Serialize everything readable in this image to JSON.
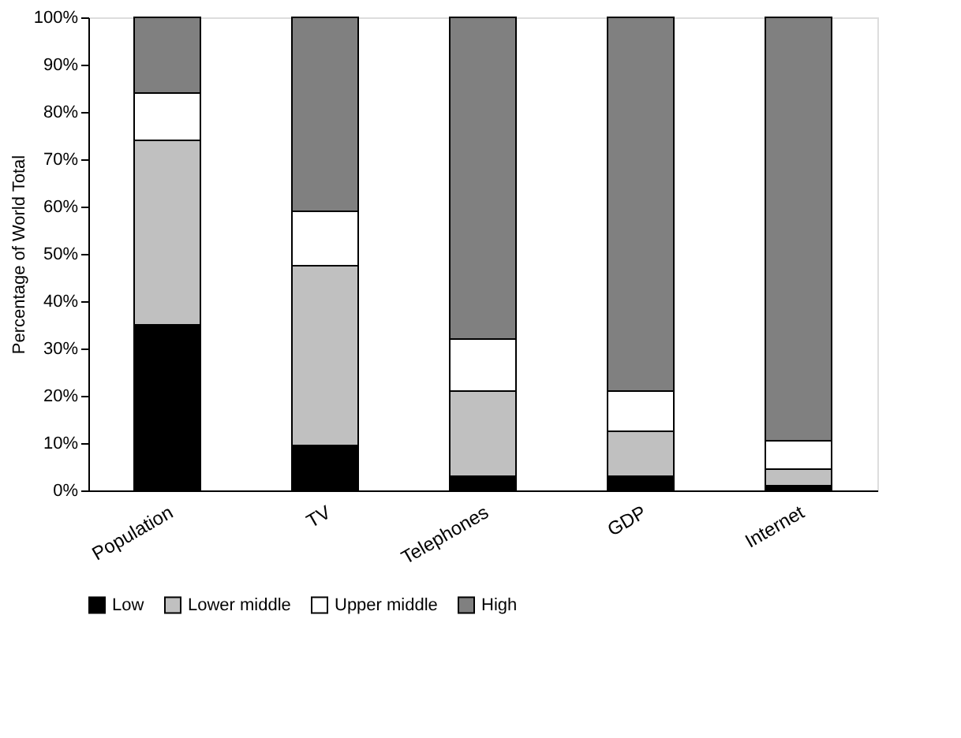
{
  "chart_data": {
    "type": "bar",
    "stacked": true,
    "ylabel": "Percentage of World Total",
    "categories": [
      "Population",
      "TV",
      "Telephones",
      "GDP",
      "Internet"
    ],
    "series": [
      {
        "name": "Low",
        "color": "#000000",
        "values": [
          35,
          9.5,
          3,
          3,
          1
        ]
      },
      {
        "name": "Lower middle",
        "color": "#c0c0c0",
        "values": [
          39,
          38,
          18,
          9.5,
          3.5
        ]
      },
      {
        "name": "Upper middle",
        "color": "#ffffff",
        "values": [
          10,
          11.5,
          11,
          8.5,
          6
        ]
      },
      {
        "name": "High",
        "color": "#808080",
        "values": [
          16,
          41,
          68,
          79,
          89.5
        ]
      }
    ],
    "ylim": [
      0,
      100
    ],
    "yticks": [
      {
        "value": 0,
        "label": "0%"
      },
      {
        "value": 10,
        "label": "10%"
      },
      {
        "value": 20,
        "label": "20%"
      },
      {
        "value": 30,
        "label": "30%"
      },
      {
        "value": 40,
        "label": "40%"
      },
      {
        "value": 50,
        "label": "50%"
      },
      {
        "value": 60,
        "label": "60%"
      },
      {
        "value": 70,
        "label": "70%"
      },
      {
        "value": 80,
        "label": "80%"
      },
      {
        "value": 90,
        "label": "90%"
      },
      {
        "value": 100,
        "label": "100%"
      }
    ],
    "legend": "bottom"
  }
}
